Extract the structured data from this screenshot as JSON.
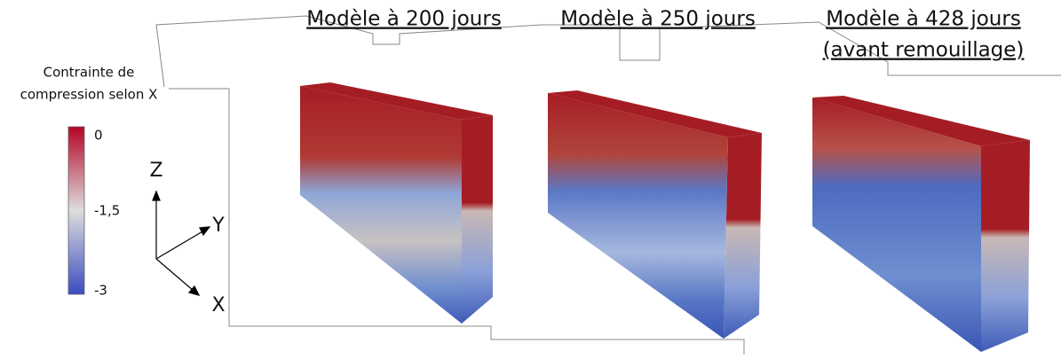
{
  "legend": {
    "title": [
      "Contrainte de",
      "compression selon X"
    ],
    "ticks": [
      "0",
      "-1,5",
      "-3"
    ]
  },
  "axes": [
    "Z",
    "Y",
    "X"
  ],
  "models": [
    [
      "Modèle à 200 jours"
    ],
    [
      "Modèle à 250 jours"
    ],
    [
      "Modèle à 428 jours",
      "(avant remouillage)"
    ]
  ]
}
